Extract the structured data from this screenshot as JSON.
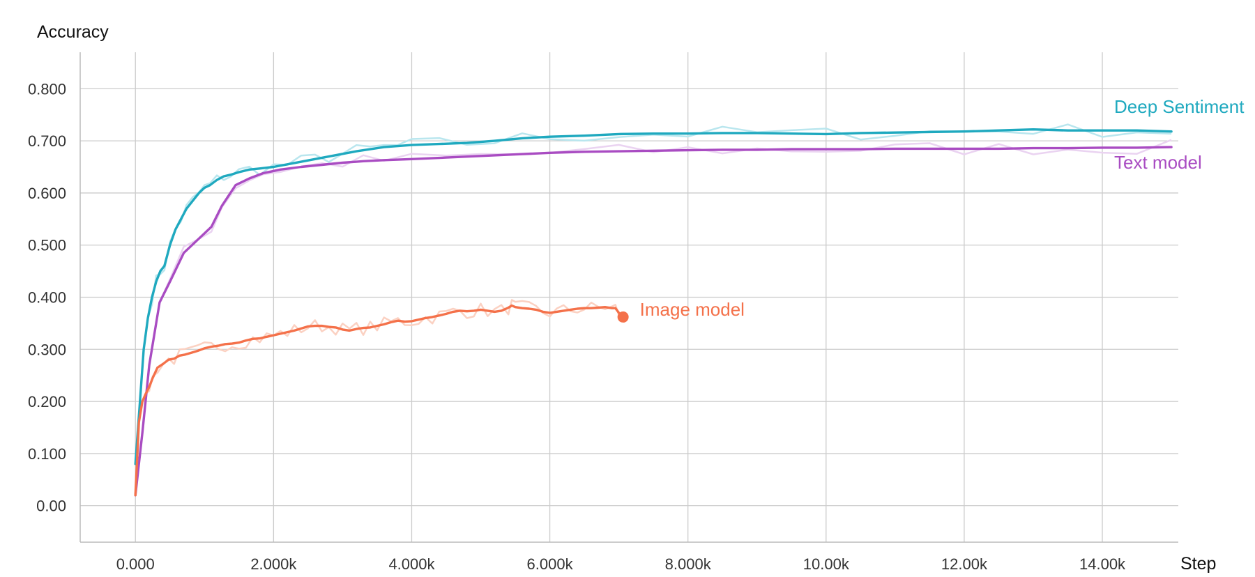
{
  "chart_data": {
    "type": "line",
    "title": "",
    "xlabel": "Step",
    "ylabel": "Accuracy",
    "xlim": [
      -800,
      15100
    ],
    "ylim": [
      -0.07,
      0.87
    ],
    "grid": true,
    "legend": "inline-end-labels",
    "x_ticks": [
      0,
      2000,
      4000,
      6000,
      8000,
      10000,
      12000,
      14000
    ],
    "x_tick_labels": [
      "0.000",
      "2.000k",
      "4.000k",
      "6.000k",
      "8.000k",
      "10.00k",
      "12.00k",
      "14.00k"
    ],
    "y_ticks": [
      0,
      0.1,
      0.2,
      0.3,
      0.4,
      0.5,
      0.6,
      0.7,
      0.8
    ],
    "y_tick_labels": [
      "0.00",
      "0.100",
      "0.200",
      "0.300",
      "0.400",
      "0.500",
      "0.600",
      "0.700",
      "0.800"
    ],
    "series": [
      {
        "name": "Deep Sentiment",
        "color": "#1fa9bf",
        "raw_color": "#b9e6ee",
        "x": [
          0,
          60,
          120,
          180,
          240,
          300,
          360,
          420,
          500,
          580,
          660,
          740,
          830,
          920,
          1000,
          1080,
          1180,
          1280,
          1380,
          1500,
          1650,
          1800,
          2000,
          2200,
          2400,
          2600,
          2800,
          3000,
          3200,
          3400,
          3600,
          3800,
          4000,
          4400,
          4800,
          5200,
          5600,
          6000,
          6500,
          7000,
          7500,
          8000,
          8500,
          9000,
          9500,
          10000,
          10500,
          11000,
          11500,
          12000,
          12500,
          13000,
          13500,
          14000,
          14500,
          15000
        ],
        "y": [
          0.08,
          0.19,
          0.3,
          0.36,
          0.4,
          0.43,
          0.45,
          0.46,
          0.5,
          0.53,
          0.55,
          0.57,
          0.585,
          0.6,
          0.61,
          0.615,
          0.625,
          0.632,
          0.635,
          0.64,
          0.645,
          0.647,
          0.65,
          0.655,
          0.66,
          0.665,
          0.67,
          0.675,
          0.68,
          0.684,
          0.688,
          0.69,
          0.692,
          0.694,
          0.696,
          0.7,
          0.705,
          0.708,
          0.71,
          0.713,
          0.714,
          0.714,
          0.715,
          0.715,
          0.714,
          0.713,
          0.715,
          0.716,
          0.717,
          0.718,
          0.72,
          0.722,
          0.72,
          0.72,
          0.72,
          0.718
        ]
      },
      {
        "name": "Text model",
        "color": "#a94cc2",
        "raw_color": "#ead3f1",
        "x": [
          0,
          100,
          200,
          350,
          500,
          700,
          900,
          1100,
          1250,
          1450,
          1650,
          1850,
          2100,
          2400,
          2700,
          3000,
          3300,
          3600,
          4000,
          4500,
          5000,
          5500,
          6000,
          6500,
          7000,
          7500,
          8000,
          8500,
          9000,
          9500,
          10000,
          10500,
          11000,
          11500,
          12000,
          12500,
          13000,
          13500,
          14000,
          14500,
          15000
        ],
        "y": [
          0.02,
          0.14,
          0.27,
          0.39,
          0.43,
          0.485,
          0.51,
          0.535,
          0.575,
          0.615,
          0.628,
          0.638,
          0.645,
          0.65,
          0.654,
          0.658,
          0.661,
          0.663,
          0.665,
          0.668,
          0.671,
          0.674,
          0.677,
          0.679,
          0.68,
          0.681,
          0.682,
          0.683,
          0.683,
          0.684,
          0.684,
          0.684,
          0.685,
          0.685,
          0.685,
          0.685,
          0.686,
          0.686,
          0.687,
          0.687,
          0.688
        ]
      },
      {
        "name": "Image model",
        "color": "#f4714a",
        "raw_color": "#fbd1c2",
        "x": [
          0,
          50,
          100,
          150,
          200,
          250,
          320,
          400,
          480,
          560,
          640,
          720,
          800,
          900,
          1000,
          1100,
          1200,
          1300,
          1400,
          1500,
          1600,
          1700,
          1800,
          1900,
          2000,
          2100,
          2200,
          2300,
          2400,
          2500,
          2600,
          2700,
          2800,
          2900,
          3000,
          3100,
          3200,
          3300,
          3400,
          3500,
          3600,
          3700,
          3800,
          3900,
          4000,
          4100,
          4200,
          4300,
          4400,
          4500,
          4600,
          4700,
          4800,
          4900,
          5000,
          5100,
          5200,
          5300,
          5400,
          5450,
          5500,
          5600,
          5700,
          5800,
          5900,
          6000,
          6100,
          6200,
          6300,
          6400,
          6500,
          6600,
          6700,
          6800,
          6900,
          6950,
          7000
        ],
        "y": [
          0.02,
          0.16,
          0.2,
          0.215,
          0.228,
          0.245,
          0.265,
          0.272,
          0.28,
          0.282,
          0.288,
          0.29,
          0.293,
          0.297,
          0.302,
          0.305,
          0.307,
          0.31,
          0.311,
          0.313,
          0.317,
          0.32,
          0.321,
          0.324,
          0.327,
          0.33,
          0.333,
          0.336,
          0.34,
          0.344,
          0.345,
          0.345,
          0.343,
          0.342,
          0.338,
          0.336,
          0.339,
          0.341,
          0.342,
          0.345,
          0.348,
          0.352,
          0.355,
          0.353,
          0.354,
          0.357,
          0.36,
          0.362,
          0.365,
          0.368,
          0.372,
          0.374,
          0.373,
          0.374,
          0.376,
          0.374,
          0.372,
          0.374,
          0.38,
          0.384,
          0.381,
          0.379,
          0.378,
          0.376,
          0.372,
          0.37,
          0.372,
          0.374,
          0.376,
          0.378,
          0.379,
          0.379,
          0.38,
          0.381,
          0.379,
          0.379,
          0.37
        ]
      }
    ]
  }
}
